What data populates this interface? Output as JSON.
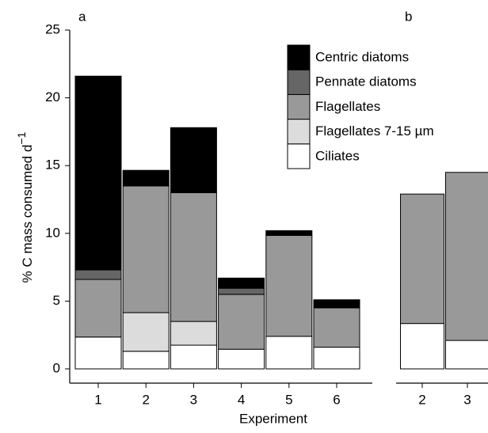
{
  "chart_data": [
    {
      "type": "stacked_bar",
      "panel_label": "a",
      "y_label": "% C mass consumed d",
      "y_label_sup": "−1",
      "x_label": "Experiment",
      "categories": [
        "1",
        "2",
        "3",
        "4",
        "5",
        "6"
      ],
      "series": [
        {
          "name": "Ciliates",
          "color": "#ffffff",
          "values": [
            2.35,
            1.3,
            1.75,
            1.45,
            2.4,
            1.6
          ]
        },
        {
          "name": "Flagellates 7-15 µm",
          "color": "#dcdcdc",
          "values": [
            0,
            2.85,
            1.75,
            0,
            0,
            0
          ]
        },
        {
          "name": "Flagellates",
          "color": "#999999",
          "values": [
            4.25,
            9.35,
            9.5,
            4.05,
            7.45,
            2.9
          ]
        },
        {
          "name": "Pennate diatoms",
          "color": "#666666",
          "values": [
            0.7,
            0,
            0,
            0.45,
            0,
            0
          ]
        },
        {
          "name": "Centric diatoms",
          "color": "#000000",
          "values": [
            14.3,
            1.15,
            4.8,
            0.75,
            0.35,
            0.6
          ]
        }
      ],
      "ylim": [
        0,
        25
      ],
      "yticks": [
        0,
        5,
        10,
        15,
        20,
        25
      ]
    },
    {
      "type": "stacked_bar",
      "panel_label": "b",
      "categories": [
        "2",
        "3"
      ],
      "series": [
        {
          "color": "#ffffff",
          "values": [
            3.35,
            2.1
          ]
        },
        {
          "color": "#999999",
          "values": [
            9.55,
            12.4
          ]
        }
      ],
      "ylim": [
        0,
        25
      ]
    }
  ]
}
